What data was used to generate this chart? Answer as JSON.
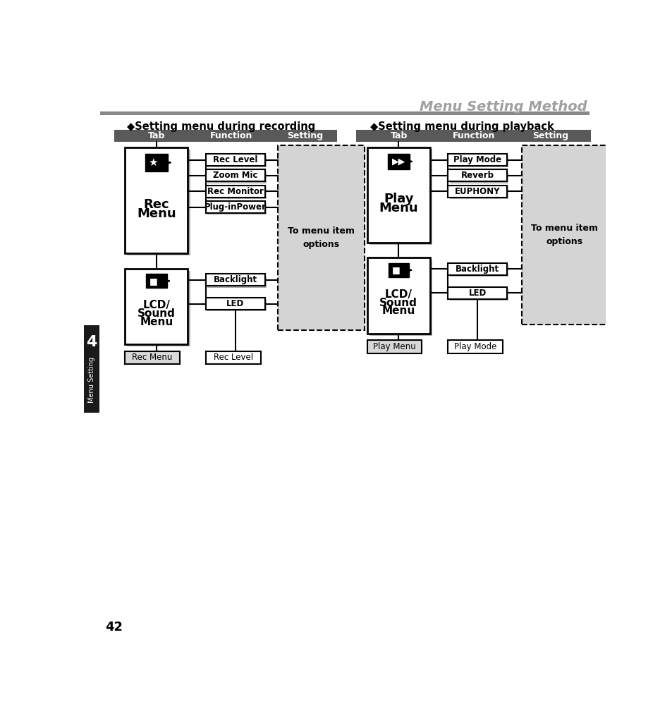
{
  "title": "Menu Setting Method",
  "title_color": "#a0a0a0",
  "page_number": "42",
  "chapter_number": "4",
  "chapter_label": "Menu Setting",
  "header_bar_color": "#595959",
  "left_section_title": "◆Setting menu during recording",
  "right_section_title": "◆Setting menu during playback",
  "col_headers": [
    "Tab",
    "Function",
    "Setting"
  ],
  "left_rec_menu_items": [
    "Rec Level",
    "Zoom Mic",
    "Rec Monitor",
    "Plug-inPower"
  ],
  "left_lcd_menu_items": [
    "Backlight",
    "LED"
  ],
  "right_play_menu_items": [
    "Play Mode",
    "Reverb",
    "EUPHONY"
  ],
  "right_lcd_menu_items": [
    "Backlight",
    "LED"
  ],
  "left_bottom_labels": [
    "Rec Menu",
    "Rec Level"
  ],
  "right_bottom_labels": [
    "Play Menu",
    "Play Mode"
  ],
  "to_menu_text": "To menu item\noptions",
  "bg_color": "#ffffff",
  "dashed_box_fill": "#d4d4d4",
  "shadow_color": "#b0b0b0"
}
